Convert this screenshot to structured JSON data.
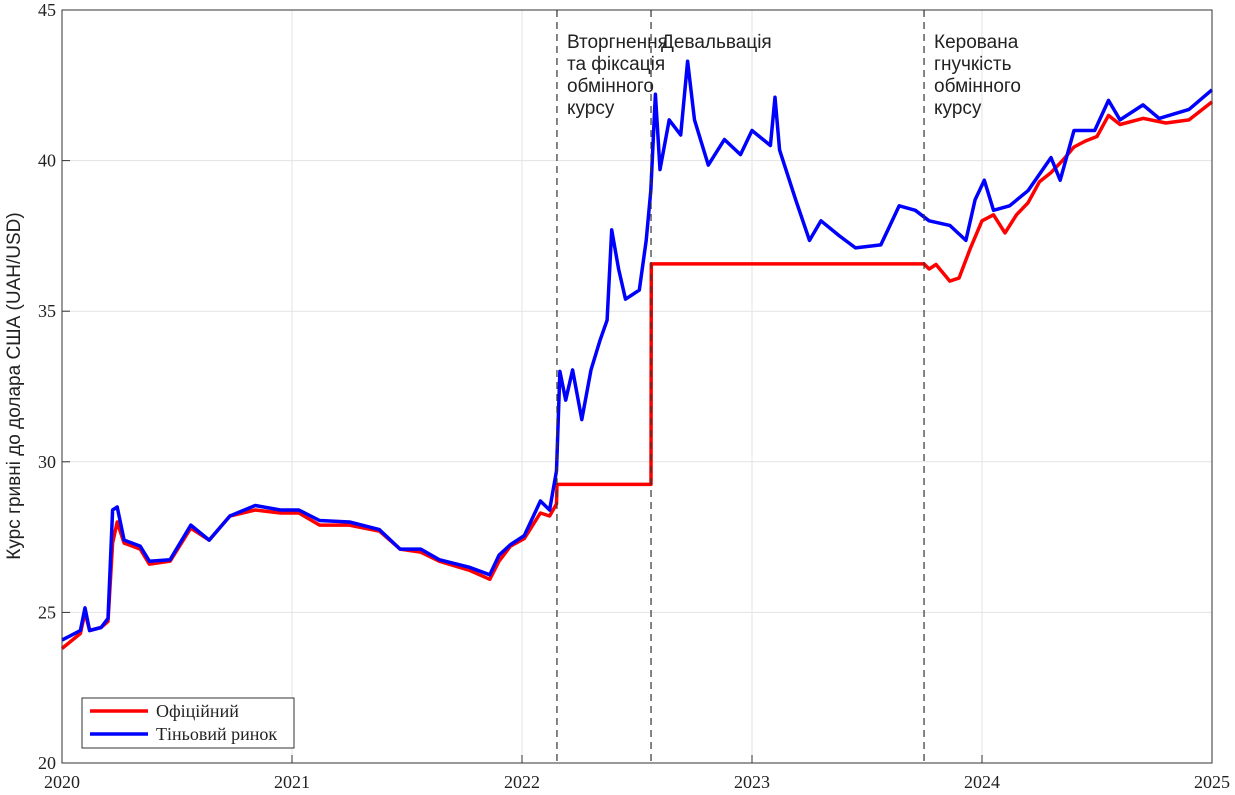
{
  "chart_data": {
    "type": "line",
    "ylabel": "Курс гривні до долара США (UAH/USD)",
    "xlim": [
      2020,
      2025
    ],
    "xticks": [
      2020,
      2021,
      2022,
      2023,
      2024,
      2025
    ],
    "ylim": [
      20,
      45
    ],
    "yticks": [
      20,
      25,
      30,
      35,
      40,
      45
    ],
    "grid": true,
    "legend_loc": "lower left",
    "series": [
      {
        "name": "Офіційний",
        "color": "#ff0000",
        "x": [
          2020.0,
          2020.08,
          2020.1,
          2020.12,
          2020.17,
          2020.2,
          2020.22,
          2020.24,
          2020.27,
          2020.34,
          2020.38,
          2020.47,
          2020.56,
          2020.64,
          2020.73,
          2020.84,
          2020.95,
          2021.03,
          2021.12,
          2021.25,
          2021.38,
          2021.47,
          2021.56,
          2021.64,
          2021.77,
          2021.86,
          2021.9,
          2021.95,
          2022.01,
          2022.08,
          2022.12,
          2022.15,
          2022.152,
          2022.561,
          2022.562,
          2023.748,
          2023.77,
          2023.8,
          2023.86,
          2023.9,
          2023.95,
          2024.0,
          2024.05,
          2024.1,
          2024.15,
          2024.2,
          2024.25,
          2024.3,
          2024.35,
          2024.4,
          2024.45,
          2024.5,
          2024.55,
          2024.6,
          2024.7,
          2024.8,
          2024.9,
          2025.0
        ],
        "values": [
          23.8,
          24.3,
          25.0,
          24.4,
          24.5,
          24.7,
          27.3,
          28.0,
          27.3,
          27.1,
          26.6,
          26.7,
          27.8,
          27.4,
          28.2,
          28.4,
          28.3,
          28.3,
          27.9,
          27.9,
          27.7,
          27.1,
          27.0,
          26.7,
          26.4,
          26.1,
          26.7,
          27.2,
          27.45,
          28.3,
          28.2,
          28.6,
          29.25,
          29.25,
          36.57,
          36.57,
          36.4,
          36.55,
          36.0,
          36.1,
          37.1,
          38.0,
          38.2,
          37.6,
          38.2,
          38.6,
          39.3,
          39.6,
          40.0,
          40.45,
          40.65,
          40.8,
          41.5,
          41.2,
          41.4,
          41.25,
          41.35,
          41.95
        ]
      },
      {
        "name": "Тіньовий ринок",
        "color": "#0000ff",
        "x": [
          2020.0,
          2020.08,
          2020.1,
          2020.12,
          2020.17,
          2020.2,
          2020.22,
          2020.24,
          2020.27,
          2020.34,
          2020.38,
          2020.47,
          2020.56,
          2020.64,
          2020.73,
          2020.84,
          2020.95,
          2021.03,
          2021.12,
          2021.25,
          2021.38,
          2021.47,
          2021.56,
          2021.64,
          2021.77,
          2021.86,
          2021.9,
          2021.95,
          2022.01,
          2022.08,
          2022.12,
          2022.15,
          2022.165,
          2022.19,
          2022.22,
          2022.26,
          2022.3,
          2022.34,
          2022.37,
          2022.39,
          2022.42,
          2022.45,
          2022.51,
          2022.54,
          2022.56,
          2022.58,
          2022.6,
          2022.64,
          2022.69,
          2022.72,
          2022.75,
          2022.81,
          2022.88,
          2022.95,
          2023.0,
          2023.08,
          2023.1,
          2023.12,
          2023.19,
          2023.25,
          2023.3,
          2023.38,
          2023.45,
          2023.56,
          2023.64,
          2023.71,
          2023.77,
          2023.86,
          2023.93,
          2023.97,
          2024.01,
          2024.05,
          2024.12,
          2024.2,
          2024.3,
          2024.34,
          2024.4,
          2024.49,
          2024.55,
          2024.6,
          2024.7,
          2024.77,
          2024.9,
          2025.0
        ],
        "values": [
          24.08,
          24.4,
          25.15,
          24.4,
          24.5,
          24.8,
          28.4,
          28.5,
          27.4,
          27.2,
          26.7,
          26.75,
          27.9,
          27.4,
          28.2,
          28.55,
          28.4,
          28.4,
          28.05,
          28.0,
          27.75,
          27.1,
          27.1,
          26.75,
          26.5,
          26.25,
          26.9,
          27.25,
          27.55,
          28.7,
          28.4,
          29.7,
          33.0,
          32.05,
          33.05,
          31.4,
          33.05,
          34.05,
          34.7,
          37.7,
          36.4,
          35.4,
          35.7,
          37.35,
          39.0,
          42.2,
          39.7,
          41.35,
          40.85,
          43.3,
          41.35,
          39.85,
          40.7,
          40.2,
          41.0,
          40.5,
          42.1,
          40.35,
          38.7,
          37.35,
          38.0,
          37.5,
          37.1,
          37.2,
          38.5,
          38.35,
          38.0,
          37.85,
          37.35,
          38.7,
          39.35,
          38.35,
          38.5,
          39.0,
          40.1,
          39.35,
          41.0,
          41.0,
          42.0,
          41.35,
          41.85,
          41.4,
          41.7,
          42.35
        ]
      }
    ],
    "annotations": [
      {
        "x": 2022.152,
        "lines": [
          "Вторгнення",
          "та фіксація",
          "обмінного",
          "курсу"
        ]
      },
      {
        "x": 2022.561,
        "lines": [
          "Девальвація"
        ]
      },
      {
        "x": 2023.748,
        "lines": [
          "Керована",
          "гнучкість",
          "обмінного",
          "курсу"
        ]
      }
    ]
  }
}
